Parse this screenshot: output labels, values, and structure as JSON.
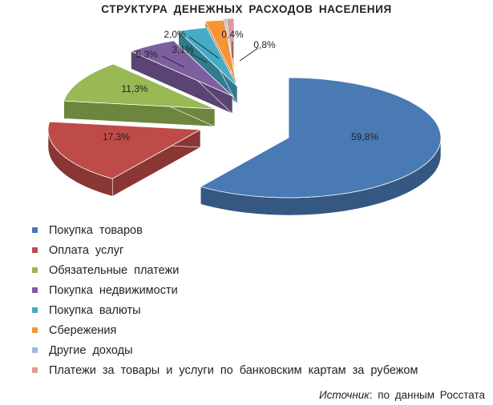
{
  "chart_data": {
    "type": "pie",
    "title": "СТРУКТУРА ДЕНЕЖНЫХ РАСХОДОВ НАСЕЛЕНИЯ",
    "legend_position": "bottom-left",
    "series": [
      {
        "name": "Покупка товаров",
        "value": 59.8,
        "label": "59,8%",
        "color": "#4a7ab4"
      },
      {
        "name": "Оплата услуг",
        "value": 17.3,
        "label": "17,3%",
        "color": "#be4b48"
      },
      {
        "name": "Обязательные платежи",
        "value": 11.3,
        "label": "11,3%",
        "color": "#98b954"
      },
      {
        "name": "Покупка недвижимости",
        "value": 5.3,
        "label": "5,3%",
        "color": "#7d5fa0"
      },
      {
        "name": "Покупка валюты",
        "value": 3.1,
        "label": "3,1%",
        "color": "#46abc6"
      },
      {
        "name": "Сбережения",
        "value": 2.0,
        "label": "2,0%",
        "color": "#f59535"
      },
      {
        "name": "Другие доходы",
        "value": 0.4,
        "label": "0,4%",
        "color": "#a3b8de"
      },
      {
        "name": "Платежи за товары и услуги по банковским картам за рубежом",
        "value": 0.8,
        "label": "0,8%",
        "color": "#dc9b9a"
      }
    ]
  },
  "source": {
    "label": "Источник",
    "text": ": по данным Росстата"
  }
}
